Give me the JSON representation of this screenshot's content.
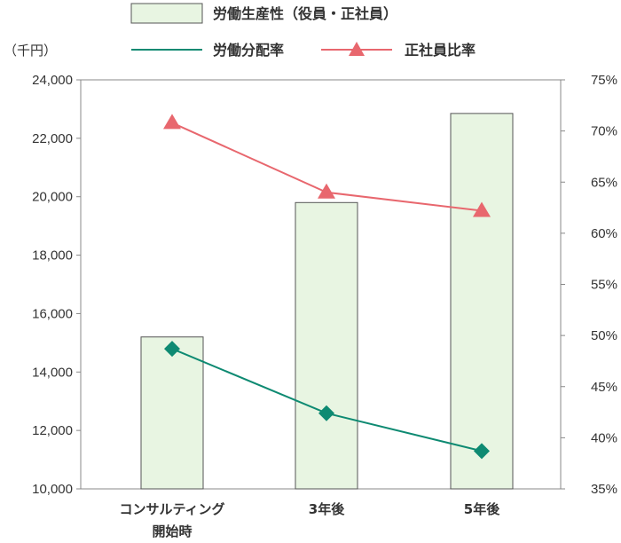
{
  "chart_data": {
    "type": "bar",
    "unit_label": "（千円）",
    "categories": [
      [
        "コンサルティング",
        "開始時"
      ],
      [
        "3年後"
      ],
      [
        "5年後"
      ]
    ],
    "left_axis": {
      "min": 10000,
      "max": 24000,
      "ticks": [
        "10,000",
        "12,000",
        "14,000",
        "16,000",
        "18,000",
        "20,000",
        "22,000",
        "24,000"
      ]
    },
    "right_axis": {
      "min": 35,
      "max": 75,
      "ticks": [
        "35%",
        "40%",
        "45%",
        "50%",
        "55%",
        "60%",
        "65%",
        "70%",
        "75%"
      ]
    },
    "series": [
      {
        "name": "労働生産性（役員・正社員）",
        "kind": "bar",
        "axis": "left",
        "values": [
          15200,
          19800,
          22850
        ],
        "color": "#e8f5e2"
      },
      {
        "name": "労働分配率",
        "kind": "line",
        "axis": "right",
        "marker": "diamond",
        "values": [
          48.7,
          42.4,
          38.7
        ],
        "color": "#0e8a72"
      },
      {
        "name": "正社員比率",
        "kind": "line",
        "axis": "right",
        "marker": "triangle",
        "values": [
          70.8,
          64.0,
          62.2
        ],
        "color": "#e8676e"
      }
    ],
    "grid": false,
    "legend_position": "top"
  }
}
